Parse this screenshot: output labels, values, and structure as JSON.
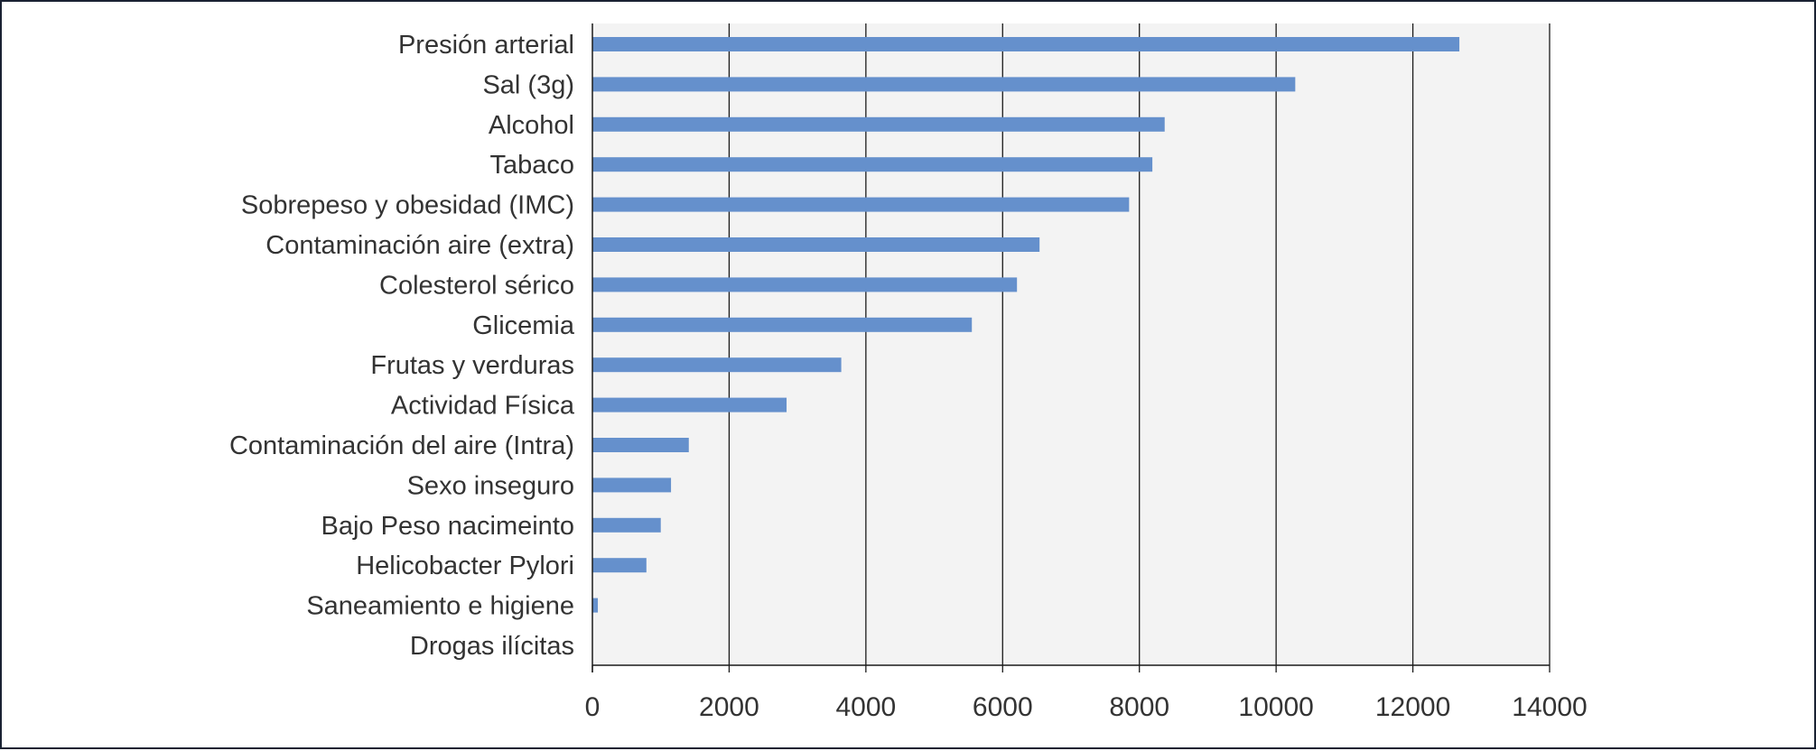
{
  "chart_data": {
    "type": "bar",
    "orientation": "horizontal",
    "title": "",
    "xlabel": "",
    "ylabel": "",
    "categories": [
      "Presión arterial",
      "Sal (3g)",
      "Alcohol",
      "Tabaco",
      "Sobrepeso y obesidad (IMC)",
      "Contaminación aire (extra)",
      "Colesterol sérico",
      "Glicemia",
      "Frutas y verduras",
      "Actividad Física",
      "Contaminación del aire (Intra)",
      "Sexo inseguro",
      "Bajo Peso nacimeinto",
      "Helicobacter Pylori",
      "Saneamiento e higiene",
      "Drogas ilícitas"
    ],
    "values": [
      12680,
      10280,
      8370,
      8190,
      7850,
      6540,
      6210,
      5550,
      3640,
      2840,
      1410,
      1150,
      1000,
      790,
      80,
      0
    ],
    "xlim": [
      0,
      14000
    ],
    "xticks": [
      "0",
      "2000",
      "4000",
      "6000",
      "8000",
      "10000",
      "12000",
      "14000"
    ],
    "grid": "vertical",
    "legend": "none",
    "colors": {
      "bar": "#6590cc",
      "plot_background": "#f3f3f3",
      "gridline": "#1a1a1a",
      "border": "#1a2233"
    }
  }
}
